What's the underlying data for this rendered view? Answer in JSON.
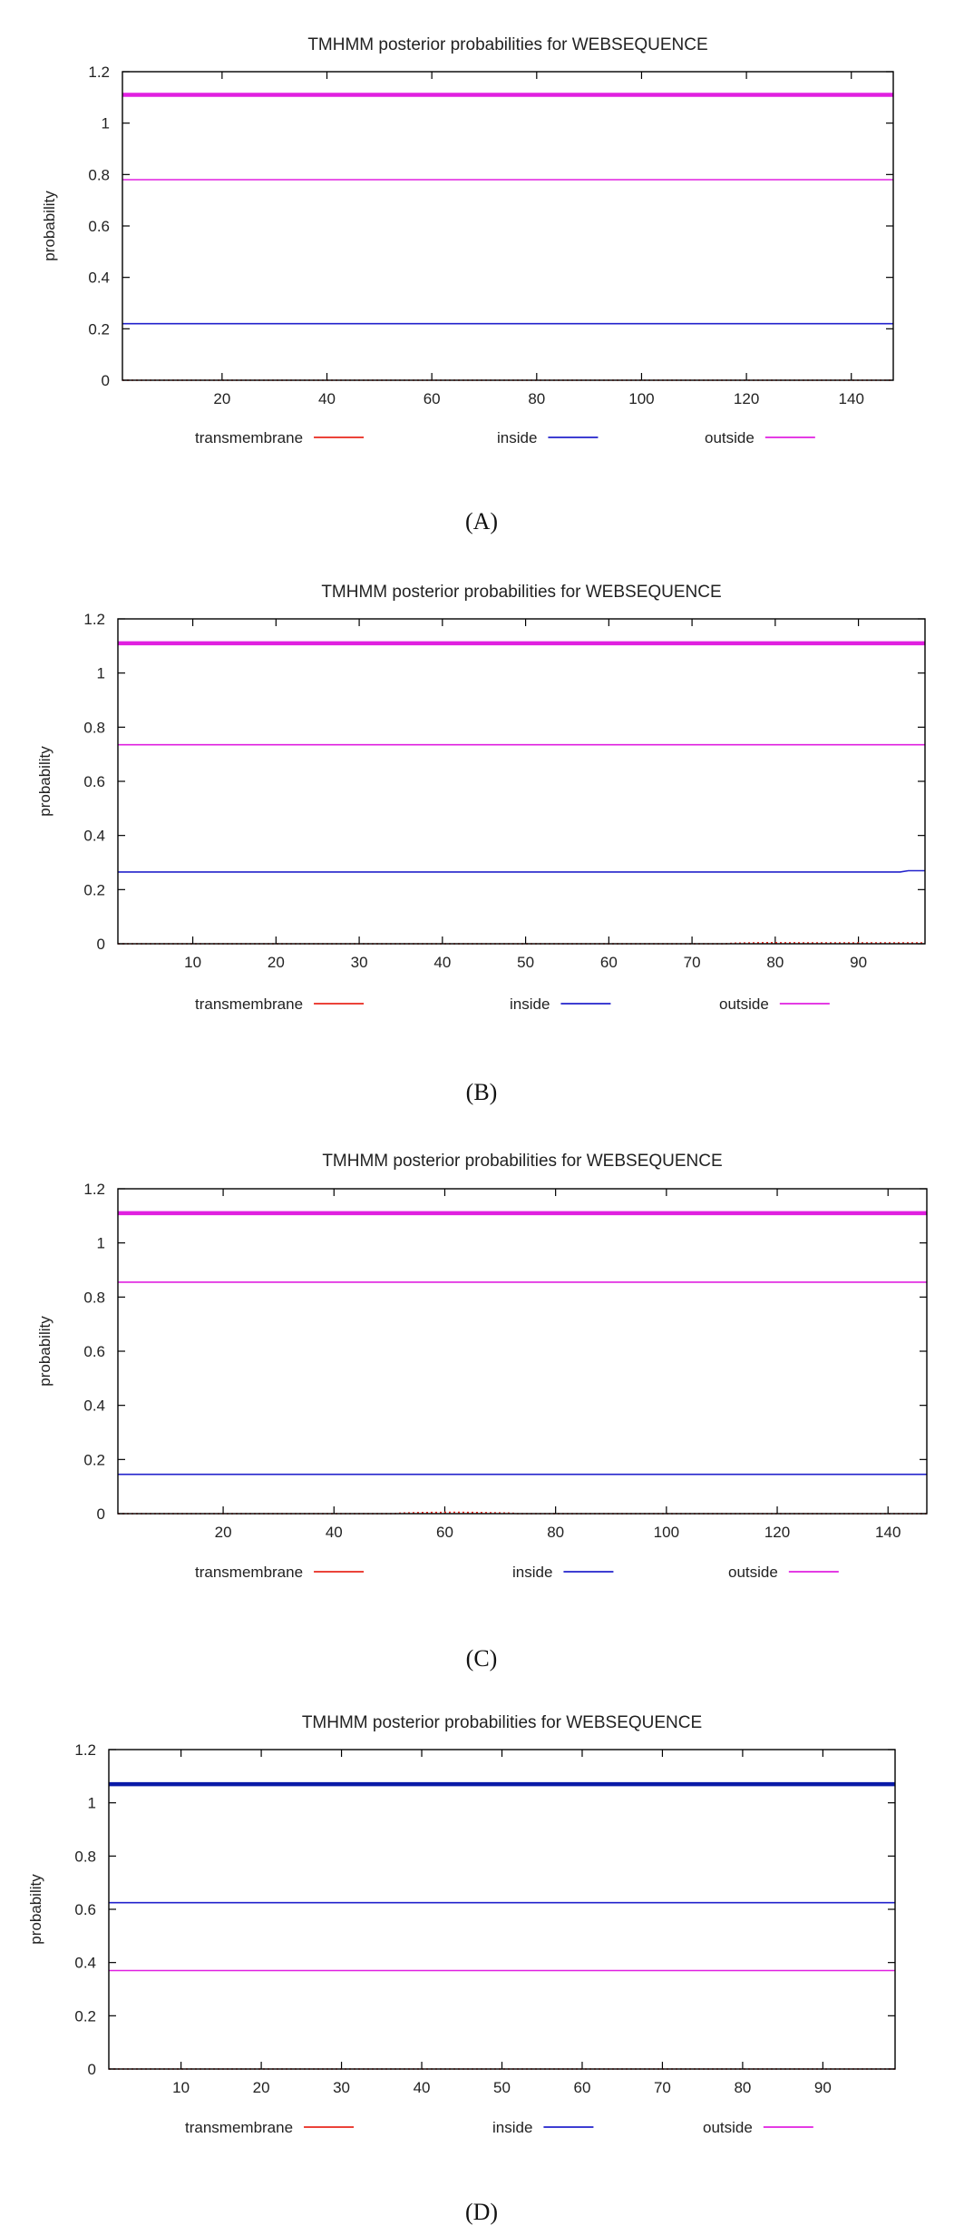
{
  "colors": {
    "transmembrane": "#e8281e",
    "inside": "#2222cc",
    "outside": "#e020e0",
    "inside_thick": "#0a1aa8",
    "axis": "#000000"
  },
  "chart_data": [
    {
      "type": "line",
      "caption": "(A)",
      "title": "TMHMM posterior probabilities for WEBSEQUENCE",
      "xlabel": "",
      "ylabel": "probability",
      "xlim": [
        1,
        148
      ],
      "ylim": [
        0,
        1.2
      ],
      "xticks": [
        20,
        40,
        60,
        80,
        100,
        120,
        140
      ],
      "yticks": [
        0,
        0.2,
        0.4,
        0.6,
        0.8,
        1,
        1.2
      ],
      "legend": [
        "transmembrane",
        "inside",
        "outside"
      ],
      "legend_position": "bottom",
      "thick_line": {
        "series": "outside",
        "y": 1.11
      },
      "series": [
        {
          "name": "transmembrane",
          "x": [
            1,
            148
          ],
          "y": [
            0,
            0
          ]
        },
        {
          "name": "inside",
          "x": [
            1,
            148
          ],
          "y": [
            0.22,
            0.22
          ]
        },
        {
          "name": "outside",
          "x": [
            1,
            148
          ],
          "y": [
            0.78,
            0.78
          ]
        }
      ]
    },
    {
      "type": "line",
      "caption": "(B)",
      "title": "TMHMM posterior probabilities for WEBSEQUENCE",
      "xlabel": "",
      "ylabel": "probability",
      "xlim": [
        1,
        98
      ],
      "ylim": [
        0,
        1.2
      ],
      "xticks": [
        10,
        20,
        30,
        40,
        50,
        60,
        70,
        80,
        90
      ],
      "yticks": [
        0,
        0.2,
        0.4,
        0.6,
        0.8,
        1,
        1.2
      ],
      "legend": [
        "transmembrane",
        "inside",
        "outside"
      ],
      "legend_position": "bottom",
      "thick_line": {
        "series": "outside",
        "y": 1.11
      },
      "series": [
        {
          "name": "transmembrane",
          "x": [
            1,
            74,
            75,
            79,
            85,
            91,
            96,
            98
          ],
          "y": [
            0,
            0,
            0.002,
            0.004,
            0.003,
            0.003,
            0.003,
            0.003
          ]
        },
        {
          "name": "inside",
          "x": [
            1,
            95,
            96,
            98
          ],
          "y": [
            0.265,
            0.265,
            0.27,
            0.27
          ]
        },
        {
          "name": "outside",
          "x": [
            1,
            98
          ],
          "y": [
            0.735,
            0.735
          ]
        }
      ]
    },
    {
      "type": "line",
      "caption": "(C)",
      "title": "TMHMM posterior probabilities for WEBSEQUENCE",
      "xlabel": "",
      "ylabel": "probability",
      "xlim": [
        1,
        147
      ],
      "ylim": [
        0,
        1.2
      ],
      "xticks": [
        20,
        40,
        60,
        80,
        100,
        120,
        140
      ],
      "yticks": [
        0,
        0.2,
        0.4,
        0.6,
        0.8,
        1,
        1.2
      ],
      "legend": [
        "transmembrane",
        "inside",
        "outside"
      ],
      "legend_position": "bottom",
      "thick_line": {
        "series": "outside",
        "y": 1.11
      },
      "series": [
        {
          "name": "transmembrane",
          "x": [
            1,
            51,
            52,
            56,
            62,
            66,
            72,
            73,
            147
          ],
          "y": [
            0,
            0,
            0.002,
            0.004,
            0.005,
            0.004,
            0.002,
            0,
            0
          ]
        },
        {
          "name": "inside",
          "x": [
            1,
            147
          ],
          "y": [
            0.145,
            0.145
          ]
        },
        {
          "name": "outside",
          "x": [
            1,
            147
          ],
          "y": [
            0.855,
            0.855
          ]
        }
      ]
    },
    {
      "type": "line",
      "caption": "(D)",
      "title": "TMHMM posterior probabilities for WEBSEQUENCE",
      "xlabel": "",
      "ylabel": "probability",
      "xlim": [
        1,
        99
      ],
      "ylim": [
        0,
        1.2
      ],
      "xticks": [
        10,
        20,
        30,
        40,
        50,
        60,
        70,
        80,
        90
      ],
      "yticks": [
        0,
        0.2,
        0.4,
        0.6,
        0.8,
        1,
        1.2
      ],
      "legend": [
        "transmembrane",
        "inside",
        "outside"
      ],
      "legend_position": "bottom",
      "thick_line": {
        "series": "inside",
        "y": 1.07
      },
      "series": [
        {
          "name": "transmembrane",
          "x": [
            1,
            99
          ],
          "y": [
            0,
            0
          ]
        },
        {
          "name": "inside",
          "x": [
            1,
            99
          ],
          "y": [
            0.625,
            0.625
          ]
        },
        {
          "name": "outside",
          "x": [
            1,
            99
          ],
          "y": [
            0.37,
            0.37
          ]
        }
      ]
    }
  ]
}
